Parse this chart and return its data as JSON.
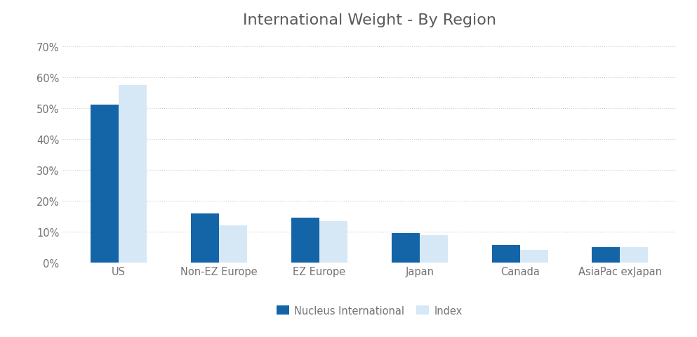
{
  "title": "International Weight - By Region",
  "categories": [
    "US",
    "Non-EZ Europe",
    "EZ Europe",
    "Japan",
    "Canada",
    "AsiaPac exJapan"
  ],
  "nucleus_values": [
    0.51,
    0.16,
    0.145,
    0.095,
    0.058,
    0.051
  ],
  "index_values": [
    0.575,
    0.12,
    0.135,
    0.088,
    0.041,
    0.05
  ],
  "nucleus_color": "#1464A8",
  "index_color": "#D6E8F5",
  "legend_labels": [
    "Nucleus International",
    "Index"
  ],
  "ylim": [
    0,
    0.72
  ],
  "ytick_values": [
    0.0,
    0.1,
    0.2,
    0.3,
    0.4,
    0.5,
    0.6,
    0.7
  ],
  "background_color": "#ffffff",
  "title_color": "#595959",
  "title_fontsize": 16,
  "tick_label_color": "#737373",
  "grid_color": "#cccccc",
  "bar_width": 0.28,
  "figsize": [
    9.93,
    4.81
  ],
  "dpi": 100
}
